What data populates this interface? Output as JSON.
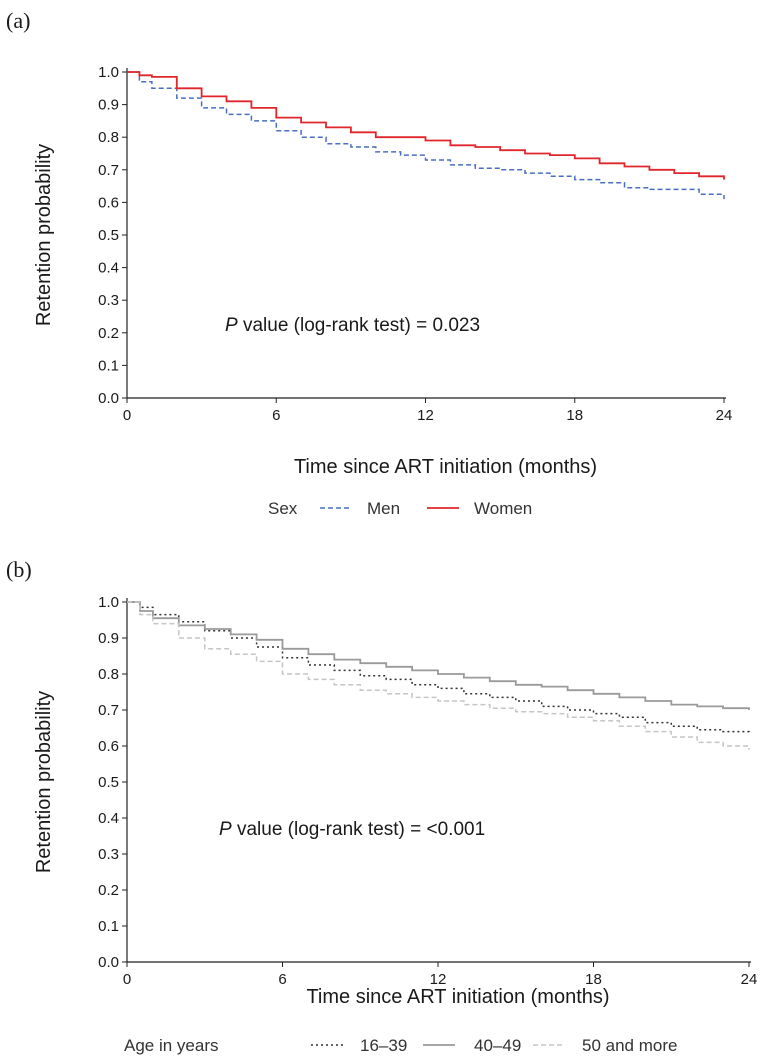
{
  "chart_data": [
    {
      "type": "line",
      "panel_label": "(a)",
      "xlabel": "Time since ART initiation (months)",
      "ylabel": "Retention probability",
      "xlim": [
        0,
        24
      ],
      "ylim": [
        0.0,
        1.0
      ],
      "x_ticks": [
        "0",
        "6",
        "12",
        "18",
        "24"
      ],
      "y_ticks": [
        "0.0",
        "0.1",
        "0.2",
        "0.3",
        "0.4",
        "0.5",
        "0.6",
        "0.7",
        "0.8",
        "0.9",
        "1.0"
      ],
      "annotation_italic": "P",
      "annotation_rest": " value (log-rank test) = 0.023",
      "legend_title": "Sex",
      "legend_position": "bottom",
      "series": [
        {
          "name": "Men",
          "color": "#4a6fc2",
          "style": "dashed",
          "x": [
            0,
            0.5,
            1,
            2,
            3,
            4,
            5,
            6,
            7,
            8,
            9,
            10,
            11,
            12,
            13,
            14,
            15,
            16,
            17,
            18,
            19,
            20,
            21,
            22,
            23,
            24
          ],
          "y": [
            1.0,
            0.97,
            0.95,
            0.92,
            0.89,
            0.87,
            0.85,
            0.82,
            0.8,
            0.78,
            0.77,
            0.755,
            0.745,
            0.73,
            0.715,
            0.705,
            0.7,
            0.69,
            0.68,
            0.67,
            0.66,
            0.645,
            0.64,
            0.64,
            0.625,
            0.61
          ]
        },
        {
          "name": "Women",
          "color": "#e0262b",
          "style": "solid",
          "x": [
            0,
            0.5,
            1,
            2,
            3,
            4,
            5,
            6,
            7,
            8,
            9,
            10,
            11,
            12,
            13,
            14,
            15,
            16,
            17,
            18,
            19,
            20,
            21,
            22,
            23,
            24
          ],
          "y": [
            1.0,
            0.99,
            0.985,
            0.95,
            0.925,
            0.91,
            0.89,
            0.86,
            0.845,
            0.83,
            0.815,
            0.8,
            0.8,
            0.79,
            0.775,
            0.77,
            0.76,
            0.75,
            0.745,
            0.735,
            0.72,
            0.71,
            0.7,
            0.69,
            0.68,
            0.67
          ]
        }
      ]
    },
    {
      "type": "line",
      "panel_label": "(b)",
      "xlabel": "Time since ART initiation (months)",
      "ylabel": "Retention probability",
      "xlim": [
        0,
        24
      ],
      "ylim": [
        0.0,
        1.0
      ],
      "x_ticks": [
        "0",
        "6",
        "12",
        "18",
        "24"
      ],
      "y_ticks": [
        "0.0",
        "0.1",
        "0.2",
        "0.3",
        "0.4",
        "0.5",
        "0.6",
        "0.7",
        "0.8",
        "0.9",
        "1.0"
      ],
      "annotation_italic": "P",
      "annotation_rest": " value (log-rank test) = <0.001",
      "legend_title": "Age in years",
      "legend_position": "bottom",
      "series": [
        {
          "name": "16–39",
          "color": "#333333",
          "style": "dotted",
          "x": [
            0,
            0.5,
            1,
            2,
            3,
            4,
            5,
            6,
            7,
            8,
            9,
            10,
            11,
            12,
            13,
            14,
            15,
            16,
            17,
            18,
            19,
            20,
            21,
            22,
            23,
            24
          ],
          "y": [
            1.0,
            0.985,
            0.965,
            0.945,
            0.92,
            0.9,
            0.875,
            0.845,
            0.825,
            0.81,
            0.795,
            0.785,
            0.77,
            0.76,
            0.745,
            0.735,
            0.725,
            0.71,
            0.7,
            0.69,
            0.68,
            0.665,
            0.655,
            0.645,
            0.64,
            0.635
          ]
        },
        {
          "name": "40–49",
          "color": "#9a9a9a",
          "style": "solid",
          "x": [
            0,
            0.5,
            1,
            2,
            3,
            4,
            5,
            6,
            7,
            8,
            9,
            10,
            11,
            12,
            13,
            14,
            15,
            16,
            17,
            18,
            19,
            20,
            21,
            22,
            23,
            24
          ],
          "y": [
            1.0,
            0.975,
            0.955,
            0.935,
            0.925,
            0.91,
            0.895,
            0.87,
            0.855,
            0.84,
            0.83,
            0.82,
            0.81,
            0.8,
            0.79,
            0.78,
            0.77,
            0.765,
            0.755,
            0.745,
            0.735,
            0.725,
            0.715,
            0.71,
            0.705,
            0.7
          ]
        },
        {
          "name": "50 and more",
          "color": "#c6c6c6",
          "style": "dashed",
          "x": [
            0,
            0.5,
            1,
            2,
            3,
            4,
            5,
            6,
            7,
            8,
            9,
            10,
            11,
            12,
            13,
            14,
            15,
            16,
            17,
            18,
            19,
            20,
            21,
            22,
            23,
            24
          ],
          "y": [
            1.0,
            0.965,
            0.94,
            0.9,
            0.87,
            0.855,
            0.835,
            0.8,
            0.785,
            0.77,
            0.755,
            0.745,
            0.735,
            0.725,
            0.715,
            0.705,
            0.695,
            0.69,
            0.68,
            0.67,
            0.655,
            0.64,
            0.625,
            0.61,
            0.6,
            0.59
          ]
        }
      ]
    }
  ]
}
